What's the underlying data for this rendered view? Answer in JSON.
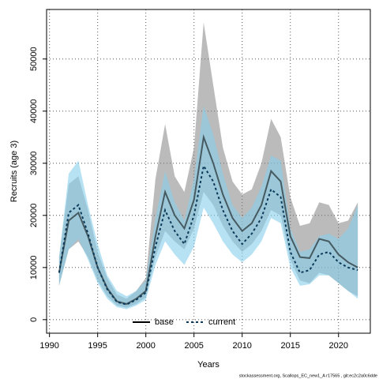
{
  "chart_data": {
    "type": "band-line",
    "xlabel": "Years",
    "ylabel": "Recruits (age 3)",
    "footer": "stockassessment.org, Scallops_EC_new1_A r17565 , git:ec2c2a0c6dde",
    "x": [
      1991,
      1992,
      1993,
      1994,
      1995,
      1996,
      1997,
      1998,
      1999,
      2000,
      2001,
      2002,
      2003,
      2004,
      2005,
      2006,
      2007,
      2008,
      2009,
      2010,
      2011,
      2012,
      2013,
      2014,
      2015,
      2016,
      2017,
      2018,
      2019,
      2020,
      2021,
      2022
    ],
    "series": [
      {
        "name": "base",
        "color": "#000000",
        "band_color": "rgba(120,120,120,0.5)",
        "linestyle": "solid",
        "values": [
          9000,
          19000,
          20500,
          16000,
          10000,
          6000,
          3500,
          3000,
          4000,
          5500,
          16000,
          24500,
          20000,
          17500,
          23000,
          35000,
          30000,
          24000,
          19500,
          17000,
          18500,
          22000,
          28500,
          26500,
          16000,
          12000,
          11800,
          15500,
          15000,
          12500,
          11000,
          10000
        ],
        "lower": [
          6500,
          13500,
          15000,
          12000,
          7500,
          4500,
          2700,
          2300,
          3000,
          4300,
          12000,
          17000,
          15000,
          13500,
          17500,
          24500,
          22000,
          18000,
          15000,
          13000,
          14500,
          17000,
          21000,
          20000,
          11500,
          7500,
          7000,
          9000,
          8500,
          7000,
          5500,
          4500
        ],
        "upper": [
          12000,
          26000,
          27500,
          21000,
          13000,
          8000,
          4800,
          4000,
          5500,
          8000,
          27000,
          37500,
          27500,
          24500,
          33000,
          57000,
          45000,
          33000,
          26500,
          24000,
          25000,
          30000,
          38500,
          35000,
          23500,
          18000,
          18500,
          22500,
          22000,
          18500,
          19000,
          22500
        ]
      },
      {
        "name": "current",
        "color": "#0b3a5a",
        "band_color": "rgba(135,206,235,0.6)",
        "linestyle": "dashed",
        "values": [
          9000,
          20500,
          22000,
          16500,
          10000,
          5800,
          3400,
          2900,
          3800,
          5200,
          14000,
          21000,
          17000,
          14500,
          20000,
          29500,
          26500,
          21000,
          17000,
          14500,
          16500,
          19500,
          25000,
          23500,
          13000,
          9000,
          9500,
          12500,
          13000,
          11000,
          10000,
          9500
        ],
        "lower": [
          6500,
          13500,
          15500,
          11500,
          7000,
          4000,
          2400,
          2000,
          2700,
          3800,
          10500,
          15000,
          12500,
          10500,
          14000,
          21500,
          18500,
          15000,
          12500,
          11000,
          12500,
          15000,
          19500,
          18500,
          10000,
          6500,
          6800,
          8500,
          8500,
          7000,
          5500,
          4000
        ],
        "upper": [
          12000,
          28000,
          30500,
          22000,
          14500,
          8500,
          5500,
          4500,
          5500,
          7500,
          19500,
          28500,
          22500,
          19000,
          27000,
          41000,
          35500,
          28000,
          22000,
          19500,
          21500,
          25500,
          31500,
          30500,
          17500,
          13000,
          13500,
          16000,
          16500,
          15500,
          17500,
          22000
        ]
      }
    ],
    "xlim": [
      1989.7,
      2023.3
    ],
    "ylim": [
      -2600,
      59500
    ],
    "xticks": [
      1990,
      1995,
      2000,
      2005,
      2010,
      2015,
      2020
    ],
    "yticks": [
      0,
      10000,
      20000,
      30000,
      40000,
      50000
    ],
    "grid": true,
    "legend": "bottom"
  }
}
